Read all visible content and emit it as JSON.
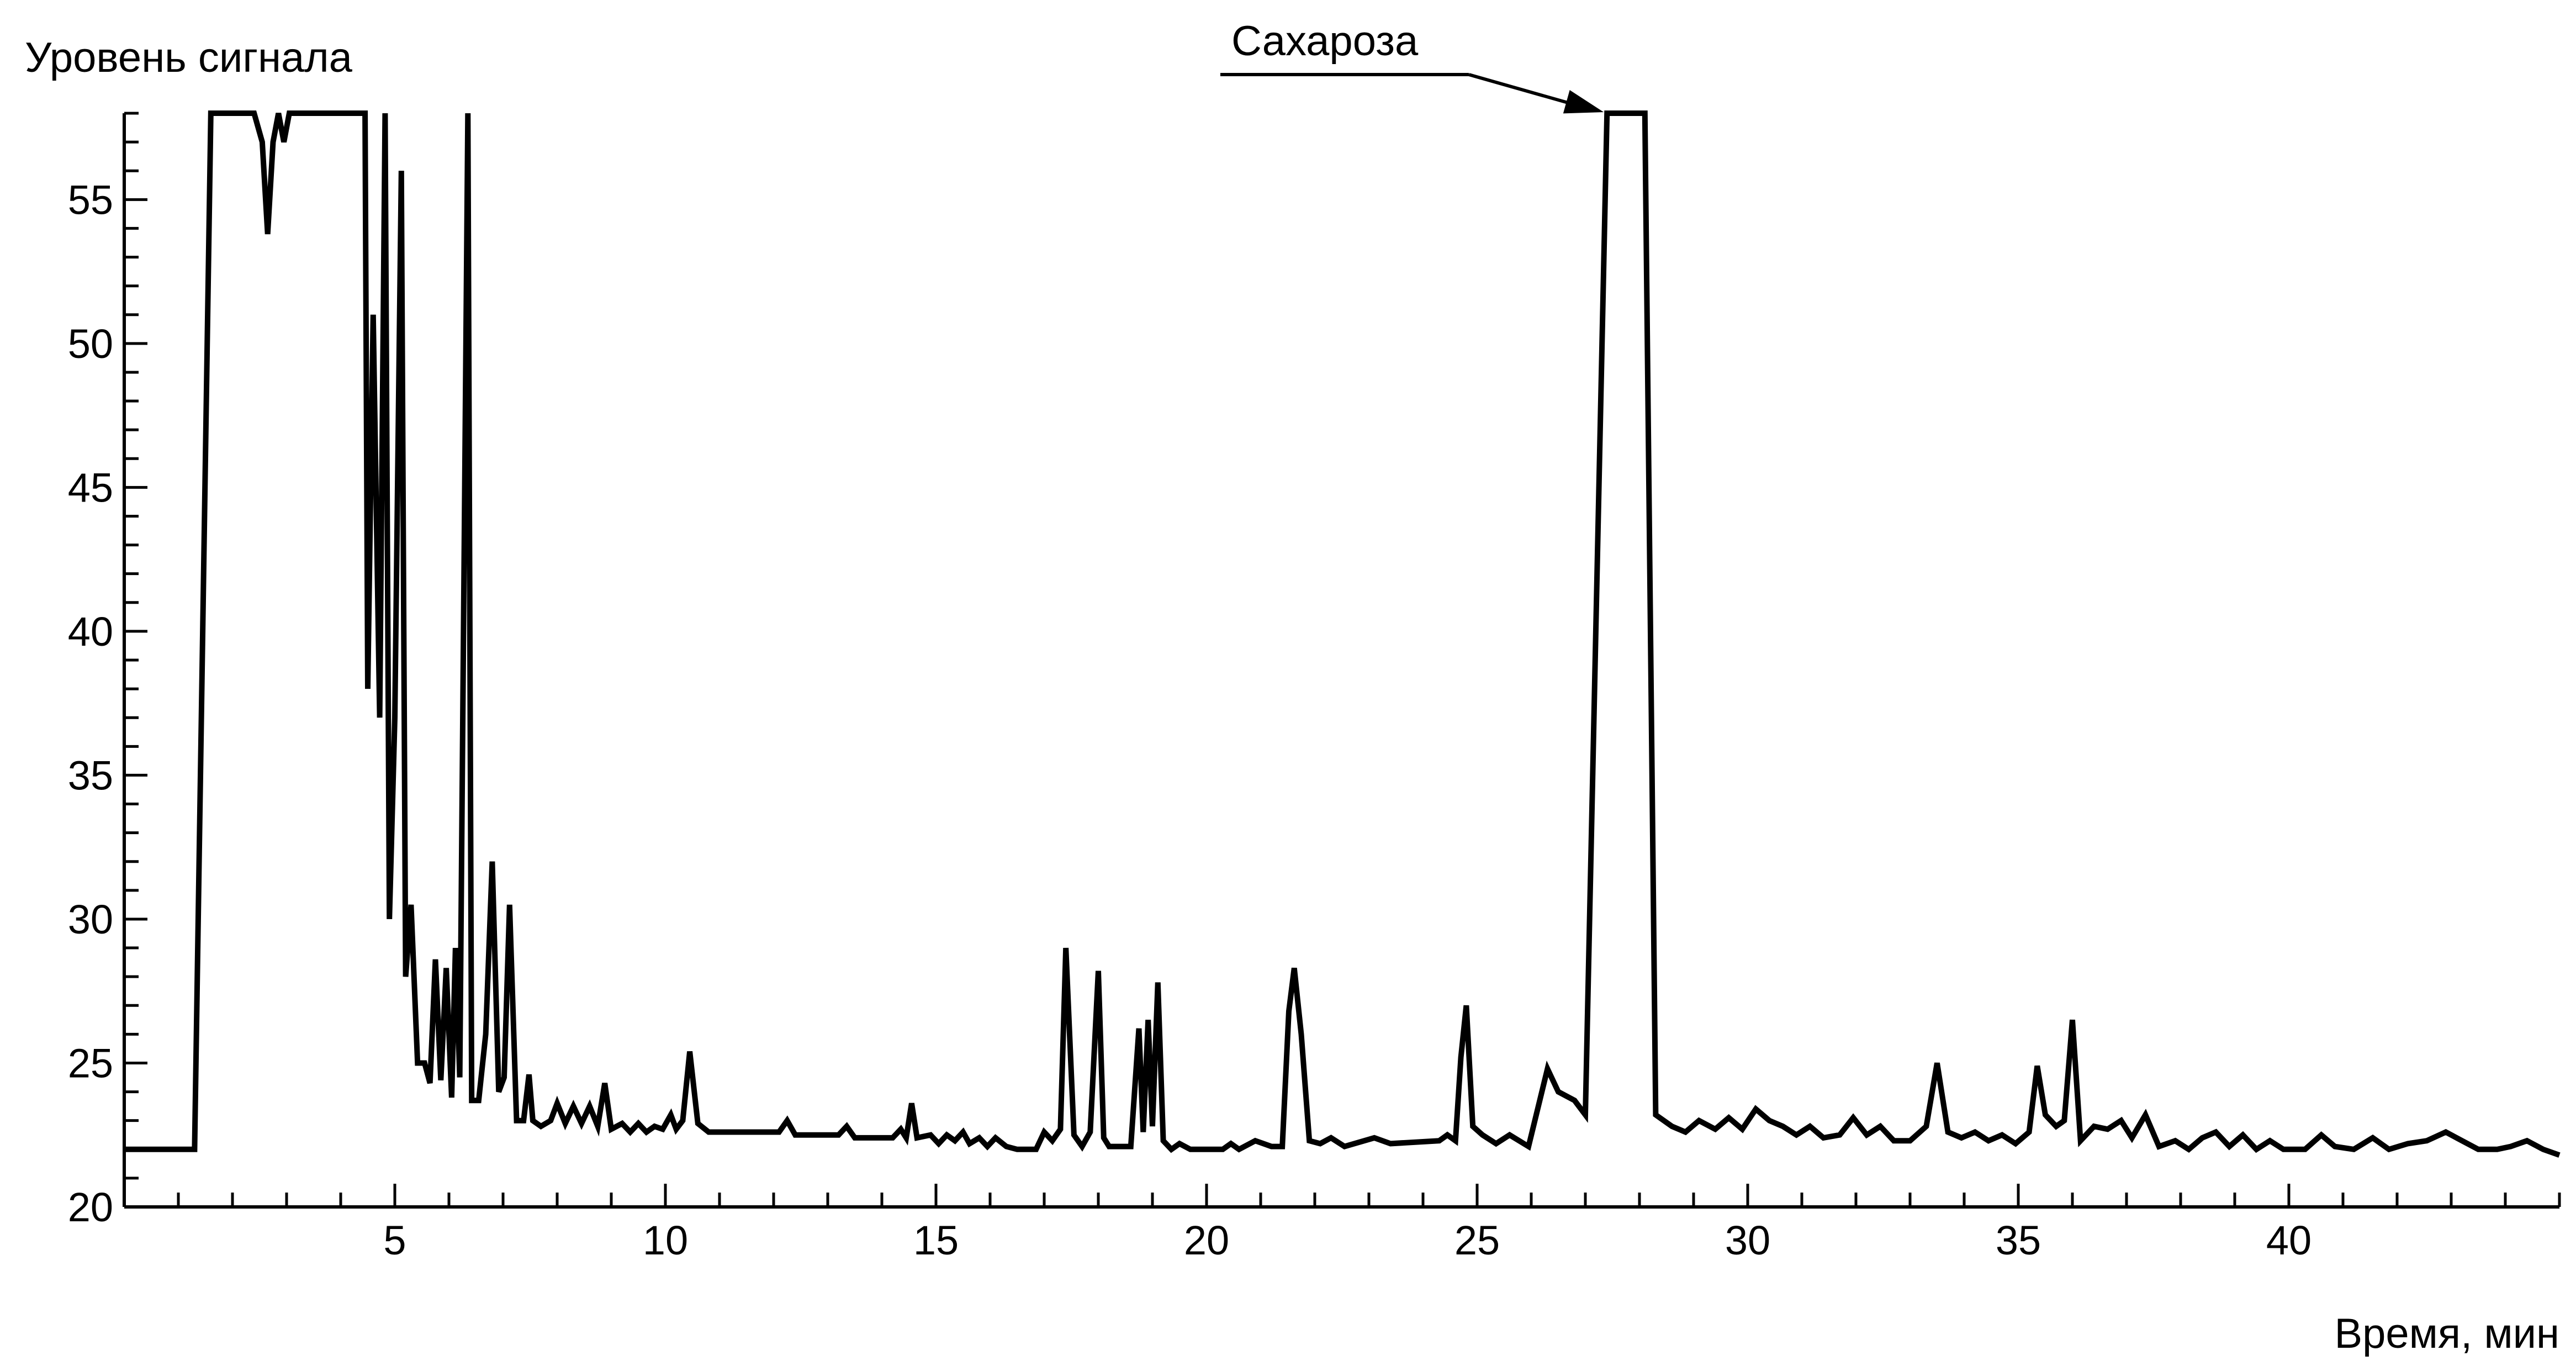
{
  "chart_data": {
    "type": "line",
    "title": "",
    "ylabel": "Уровень сигнала",
    "xlabel": "Время, мин",
    "xlim": [
      0,
      45
    ],
    "ylim": [
      20,
      58
    ],
    "grid": false,
    "x_ticks": [
      5,
      10,
      15,
      20,
      25,
      30,
      35,
      40
    ],
    "y_ticks": [
      20,
      25,
      30,
      35,
      40,
      45,
      50,
      55
    ],
    "x_minor_step": 1,
    "y_minor_step": 1,
    "annotations": [
      {
        "text": "Сахароза",
        "x": 27.4,
        "y": 58
      }
    ],
    "series": [
      {
        "color": "#000000",
        "points": [
          [
            0.0,
            22.0
          ],
          [
            1.3,
            22.0
          ],
          [
            1.6,
            58.0
          ],
          [
            2.4,
            58.0
          ],
          [
            2.55,
            57.0
          ],
          [
            2.65,
            53.8
          ],
          [
            2.75,
            57.0
          ],
          [
            2.85,
            58.0
          ],
          [
            2.95,
            57.0
          ],
          [
            3.05,
            58.0
          ],
          [
            4.45,
            58.0
          ],
          [
            4.5,
            38.0
          ],
          [
            4.6,
            51.0
          ],
          [
            4.72,
            37.0
          ],
          [
            4.82,
            58.0
          ],
          [
            4.9,
            30.0
          ],
          [
            5.0,
            37.0
          ],
          [
            5.12,
            56.0
          ],
          [
            5.2,
            28.0
          ],
          [
            5.3,
            30.5
          ],
          [
            5.42,
            25.0
          ],
          [
            5.55,
            25.0
          ],
          [
            5.65,
            24.3
          ],
          [
            5.75,
            28.6
          ],
          [
            5.85,
            24.4
          ],
          [
            5.95,
            28.3
          ],
          [
            6.05,
            23.8
          ],
          [
            6.12,
            29.0
          ],
          [
            6.2,
            24.5
          ],
          [
            6.35,
            58.0
          ],
          [
            6.42,
            23.7
          ],
          [
            6.55,
            23.7
          ],
          [
            6.68,
            26.0
          ],
          [
            6.8,
            32.0
          ],
          [
            6.92,
            24.0
          ],
          [
            7.02,
            24.5
          ],
          [
            7.12,
            30.5
          ],
          [
            7.25,
            23.0
          ],
          [
            7.38,
            23.0
          ],
          [
            7.48,
            24.6
          ],
          [
            7.55,
            23.0
          ],
          [
            7.7,
            22.8
          ],
          [
            7.88,
            23.0
          ],
          [
            8.0,
            23.6
          ],
          [
            8.15,
            22.9
          ],
          [
            8.3,
            23.5
          ],
          [
            8.45,
            22.9
          ],
          [
            8.6,
            23.5
          ],
          [
            8.75,
            22.8
          ],
          [
            8.88,
            24.3
          ],
          [
            9.0,
            22.7
          ],
          [
            9.2,
            22.9
          ],
          [
            9.35,
            22.6
          ],
          [
            9.5,
            22.9
          ],
          [
            9.65,
            22.6
          ],
          [
            9.8,
            22.8
          ],
          [
            9.95,
            22.7
          ],
          [
            10.1,
            23.2
          ],
          [
            10.2,
            22.7
          ],
          [
            10.32,
            23.0
          ],
          [
            10.45,
            25.4
          ],
          [
            10.6,
            22.9
          ],
          [
            10.8,
            22.6
          ],
          [
            12.1,
            22.6
          ],
          [
            12.25,
            23.0
          ],
          [
            12.4,
            22.5
          ],
          [
            13.2,
            22.5
          ],
          [
            13.35,
            22.8
          ],
          [
            13.5,
            22.4
          ],
          [
            14.2,
            22.4
          ],
          [
            14.35,
            22.7
          ],
          [
            14.45,
            22.4
          ],
          [
            14.55,
            23.6
          ],
          [
            14.65,
            22.4
          ],
          [
            14.9,
            22.5
          ],
          [
            15.05,
            22.2
          ],
          [
            15.2,
            22.5
          ],
          [
            15.35,
            22.3
          ],
          [
            15.5,
            22.6
          ],
          [
            15.62,
            22.2
          ],
          [
            15.8,
            22.4
          ],
          [
            15.95,
            22.1
          ],
          [
            16.1,
            22.4
          ],
          [
            16.3,
            22.1
          ],
          [
            16.5,
            22.0
          ],
          [
            16.85,
            22.0
          ],
          [
            17.0,
            22.6
          ],
          [
            17.15,
            22.3
          ],
          [
            17.3,
            22.7
          ],
          [
            17.4,
            29.0
          ],
          [
            17.55,
            22.5
          ],
          [
            17.7,
            22.1
          ],
          [
            17.85,
            22.6
          ],
          [
            18.0,
            28.2
          ],
          [
            18.1,
            22.4
          ],
          [
            18.2,
            22.1
          ],
          [
            18.6,
            22.1
          ],
          [
            18.75,
            26.2
          ],
          [
            18.83,
            22.6
          ],
          [
            18.92,
            26.5
          ],
          [
            19.0,
            22.8
          ],
          [
            19.1,
            27.8
          ],
          [
            19.2,
            22.3
          ],
          [
            19.35,
            22.0
          ],
          [
            19.5,
            22.2
          ],
          [
            19.7,
            22.0
          ],
          [
            20.3,
            22.0
          ],
          [
            20.45,
            22.2
          ],
          [
            20.6,
            22.0
          ],
          [
            20.9,
            22.3
          ],
          [
            21.2,
            22.1
          ],
          [
            21.4,
            22.1
          ],
          [
            21.52,
            26.8
          ],
          [
            21.62,
            28.3
          ],
          [
            21.75,
            26.0
          ],
          [
            21.9,
            22.3
          ],
          [
            22.1,
            22.2
          ],
          [
            22.3,
            22.4
          ],
          [
            22.55,
            22.1
          ],
          [
            23.1,
            22.4
          ],
          [
            23.4,
            22.2
          ],
          [
            24.3,
            22.3
          ],
          [
            24.45,
            22.5
          ],
          [
            24.6,
            22.3
          ],
          [
            24.7,
            25.2
          ],
          [
            24.8,
            27.0
          ],
          [
            24.92,
            22.8
          ],
          [
            25.1,
            22.5
          ],
          [
            25.35,
            22.2
          ],
          [
            25.6,
            22.5
          ],
          [
            25.95,
            22.1
          ],
          [
            26.3,
            24.8
          ],
          [
            26.5,
            24.0
          ],
          [
            26.8,
            23.7
          ],
          [
            27.0,
            23.2
          ],
          [
            27.4,
            58.0
          ],
          [
            28.1,
            58.0
          ],
          [
            28.3,
            23.2
          ],
          [
            28.6,
            22.8
          ],
          [
            28.85,
            22.6
          ],
          [
            29.1,
            23.0
          ],
          [
            29.4,
            22.7
          ],
          [
            29.65,
            23.1
          ],
          [
            29.9,
            22.7
          ],
          [
            30.15,
            23.4
          ],
          [
            30.4,
            23.0
          ],
          [
            30.65,
            22.8
          ],
          [
            30.9,
            22.5
          ],
          [
            31.15,
            22.8
          ],
          [
            31.4,
            22.4
          ],
          [
            31.7,
            22.5
          ],
          [
            31.95,
            23.1
          ],
          [
            32.2,
            22.5
          ],
          [
            32.45,
            22.8
          ],
          [
            32.7,
            22.3
          ],
          [
            33.0,
            22.3
          ],
          [
            33.3,
            22.8
          ],
          [
            33.5,
            25.0
          ],
          [
            33.7,
            22.6
          ],
          [
            33.95,
            22.4
          ],
          [
            34.2,
            22.6
          ],
          [
            34.45,
            22.3
          ],
          [
            34.7,
            22.5
          ],
          [
            34.95,
            22.2
          ],
          [
            35.2,
            22.6
          ],
          [
            35.35,
            24.9
          ],
          [
            35.5,
            23.2
          ],
          [
            35.7,
            22.8
          ],
          [
            35.85,
            23.0
          ],
          [
            36.0,
            26.5
          ],
          [
            36.15,
            22.3
          ],
          [
            36.4,
            22.8
          ],
          [
            36.65,
            22.7
          ],
          [
            36.9,
            23.0
          ],
          [
            37.1,
            22.4
          ],
          [
            37.35,
            23.2
          ],
          [
            37.6,
            22.1
          ],
          [
            37.9,
            22.3
          ],
          [
            38.15,
            22.0
          ],
          [
            38.4,
            22.4
          ],
          [
            38.65,
            22.6
          ],
          [
            38.9,
            22.1
          ],
          [
            39.15,
            22.5
          ],
          [
            39.4,
            22.0
          ],
          [
            39.65,
            22.3
          ],
          [
            39.9,
            22.0
          ],
          [
            40.3,
            22.0
          ],
          [
            40.6,
            22.5
          ],
          [
            40.85,
            22.1
          ],
          [
            41.2,
            22.0
          ],
          [
            41.55,
            22.4
          ],
          [
            41.85,
            22.0
          ],
          [
            42.2,
            22.2
          ],
          [
            42.55,
            22.3
          ],
          [
            42.9,
            22.6
          ],
          [
            43.2,
            22.3
          ],
          [
            43.5,
            22.0
          ],
          [
            43.85,
            22.0
          ],
          [
            44.1,
            22.1
          ],
          [
            44.4,
            22.3
          ],
          [
            44.7,
            22.0
          ],
          [
            45.0,
            21.8
          ]
        ]
      }
    ]
  }
}
